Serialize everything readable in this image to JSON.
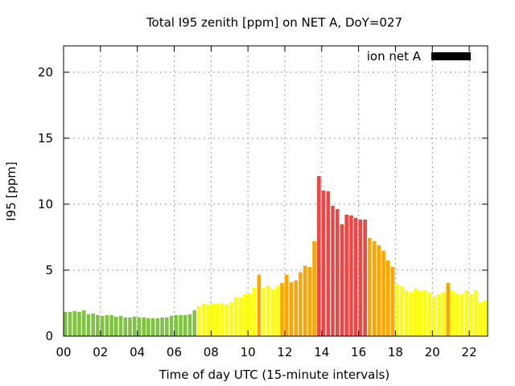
{
  "chart_data": {
    "type": "bar",
    "title": "Total I95 zenith [ppm] on NET A, DoY=027",
    "xlabel": "Time of day UTC (15-minute intervals)",
    "ylabel": "I95 [ppm]",
    "xlim": [
      0,
      23
    ],
    "ylim": [
      0,
      22
    ],
    "grid": true,
    "x_ticks": [
      0,
      2,
      4,
      6,
      8,
      10,
      12,
      14,
      16,
      18,
      20,
      22
    ],
    "x_tick_labels": [
      "00",
      "02",
      "04",
      "06",
      "08",
      "10",
      "12",
      "14",
      "16",
      "18",
      "20",
      "22"
    ],
    "y_ticks": [
      0,
      5,
      10,
      15,
      20
    ],
    "y_tick_labels": [
      "0",
      "5",
      "10",
      "15",
      "20"
    ],
    "legend": {
      "label": "ion net A",
      "color": "#000000",
      "position": "top-right"
    },
    "interval_hours": 0.25,
    "color_thresholds": [
      {
        "max": 2,
        "color": "#80c342"
      },
      {
        "max": 4,
        "color": "#ffff00"
      },
      {
        "max": 8,
        "color": "#ffa500"
      },
      {
        "max": 100,
        "color": "#ee4545"
      }
    ],
    "values": [
      1.84,
      1.84,
      1.9,
      1.84,
      1.96,
      1.66,
      1.72,
      1.6,
      1.54,
      1.6,
      1.6,
      1.48,
      1.54,
      1.42,
      1.42,
      1.48,
      1.42,
      1.42,
      1.36,
      1.36,
      1.36,
      1.42,
      1.42,
      1.54,
      1.6,
      1.6,
      1.6,
      1.66,
      1.96,
      2.27,
      2.45,
      2.39,
      2.45,
      2.45,
      2.51,
      2.39,
      2.57,
      2.94,
      2.94,
      3.18,
      3.24,
      3.67,
      4.65,
      3.67,
      3.8,
      3.55,
      3.8,
      4.04,
      4.65,
      4.1,
      4.22,
      4.84,
      5.33,
      5.24,
      7.2,
      12.13,
      11.04,
      10.98,
      9.88,
      9.63,
      8.48,
      9.21,
      9.15,
      8.96,
      8.84,
      8.84,
      7.44,
      7.2,
      6.89,
      6.46,
      5.73,
      5.24,
      3.97,
      3.79,
      3.48,
      3.36,
      3.6,
      3.42,
      3.48,
      3.3,
      3.0,
      3.18,
      3.36,
      4.03,
      3.42,
      3.24,
      3.18,
      3.48,
      3.18,
      3.48,
      2.57,
      2.69
    ]
  }
}
